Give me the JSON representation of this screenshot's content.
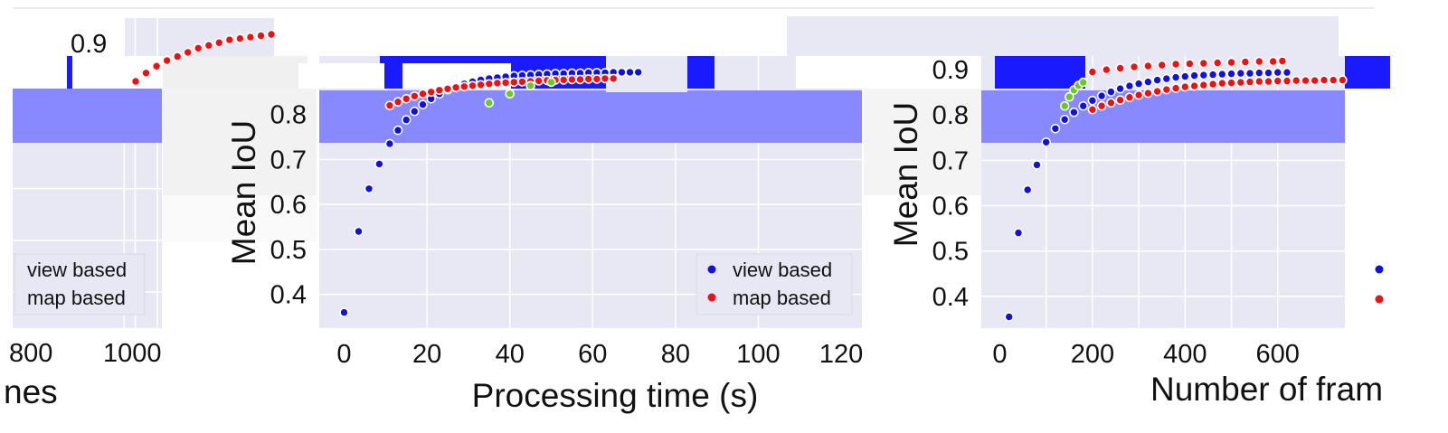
{
  "colors": {
    "plot_bg": "#e8e8f4",
    "band": "#8888ff",
    "band_dark": "#1a1aff",
    "grid": "#ffffff",
    "view_based": "#1010e0",
    "map_based": "#ee1111",
    "highlight": "#66cc22"
  },
  "chart_data": [
    {
      "id": "left",
      "type": "scatter",
      "xlabel": "Number of frames",
      "ylabel": "Mean IoU",
      "visible_x_ticks": [
        "800",
        "1000"
      ],
      "visible_y_ticks": [
        "0.9"
      ],
      "xlabel_visible_part": "nes",
      "xlim": [
        0,
        1040
      ],
      "ylim": [
        0.33,
        0.93
      ],
      "grid": true,
      "legend": {
        "placement": "bottom-right",
        "entries": [
          "view based",
          "map based"
        ]
      },
      "series": [
        {
          "name": "map based",
          "x": [
            480,
            520,
            560,
            600,
            640,
            680,
            720,
            760,
            800,
            840,
            880,
            920,
            960,
            1000
          ],
          "y": [
            0.872,
            0.878,
            0.883,
            0.887,
            0.89,
            0.893,
            0.896,
            0.898,
            0.9,
            0.902,
            0.903,
            0.904,
            0.905,
            0.906
          ]
        }
      ]
    },
    {
      "id": "middle",
      "type": "scatter",
      "xlabel": "Processing time (s)",
      "ylabel": "Mean IoU",
      "x_ticks": [
        "0",
        "20",
        "40",
        "60",
        "80",
        "100",
        "120"
      ],
      "y_ticks": [
        "0.4",
        "0.5",
        "0.6",
        "0.7",
        "0.8"
      ],
      "xlim": [
        -6,
        125
      ],
      "ylim": [
        0.325,
        0.93
      ],
      "grid": true,
      "legend": {
        "placement": "bottom-right",
        "entries": [
          "view based",
          "map based"
        ]
      },
      "series": [
        {
          "name": "view based",
          "x": [
            0,
            3.5,
            6,
            8.5,
            11,
            13,
            15,
            17,
            19,
            21,
            23,
            25,
            27,
            29,
            31,
            33,
            35,
            37,
            39,
            41,
            43,
            45,
            47,
            49,
            51,
            53,
            55,
            57,
            59,
            61,
            63,
            65,
            67,
            69,
            71
          ],
          "y": [
            0.36,
            0.54,
            0.635,
            0.69,
            0.735,
            0.765,
            0.788,
            0.807,
            0.822,
            0.835,
            0.846,
            0.855,
            0.862,
            0.868,
            0.873,
            0.877,
            0.88,
            0.882,
            0.884,
            0.886,
            0.887,
            0.888,
            0.889,
            0.89,
            0.891,
            0.891,
            0.892,
            0.892,
            0.893,
            0.893,
            0.893,
            0.894,
            0.894,
            0.894,
            0.894
          ]
        },
        {
          "name": "map based",
          "x": [
            11,
            13,
            15,
            17,
            19,
            21,
            23,
            25,
            27,
            29,
            31,
            33,
            35,
            37,
            39,
            41,
            43,
            45,
            47,
            49,
            51,
            53,
            55,
            57,
            59,
            61,
            63,
            65
          ],
          "y": [
            0.82,
            0.828,
            0.835,
            0.841,
            0.846,
            0.85,
            0.854,
            0.857,
            0.86,
            0.862,
            0.864,
            0.866,
            0.868,
            0.87,
            0.871,
            0.872,
            0.873,
            0.874,
            0.875,
            0.876,
            0.877,
            0.877,
            0.878,
            0.878,
            0.879,
            0.879,
            0.88,
            0.88
          ]
        },
        {
          "name": "highlight",
          "x": [
            35,
            40,
            45,
            50
          ],
          "y": [
            0.826,
            0.846,
            0.864,
            0.872
          ]
        }
      ]
    },
    {
      "id": "right",
      "type": "scatter",
      "xlabel": "Number of fram",
      "ylabel": "Mean IoU",
      "x_ticks": [
        "0",
        "200",
        "400",
        "600"
      ],
      "y_ticks": [
        "0.4",
        "0.5",
        "0.6",
        "0.7",
        "0.8",
        "0.9"
      ],
      "xlim": [
        -40,
        745
      ],
      "ylim": [
        0.33,
        0.93
      ],
      "grid": true,
      "legend": {
        "placement": "bottom-right",
        "entries": [
          "view based",
          "map based"
        ]
      },
      "series": [
        {
          "name": "view based",
          "x": [
            20,
            40,
            60,
            80,
            100,
            120,
            140,
            160,
            180,
            200,
            220,
            240,
            260,
            280,
            300,
            320,
            340,
            360,
            380,
            400,
            420,
            440,
            460,
            480,
            500,
            520,
            540,
            560,
            580,
            600,
            620
          ],
          "y": [
            0.355,
            0.54,
            0.635,
            0.69,
            0.74,
            0.77,
            0.79,
            0.806,
            0.82,
            0.832,
            0.842,
            0.851,
            0.858,
            0.864,
            0.869,
            0.873,
            0.877,
            0.88,
            0.883,
            0.885,
            0.887,
            0.888,
            0.889,
            0.89,
            0.891,
            0.892,
            0.892,
            0.893,
            0.893,
            0.894,
            0.894
          ]
        },
        {
          "name": "map based",
          "x": [
            200,
            220,
            240,
            260,
            280,
            300,
            320,
            340,
            360,
            380,
            400,
            420,
            440,
            460,
            480,
            500,
            520,
            540,
            560,
            580,
            600,
            620,
            640,
            660,
            680,
            700,
            720,
            740
          ],
          "y": [
            0.812,
            0.82,
            0.827,
            0.833,
            0.839,
            0.844,
            0.848,
            0.852,
            0.856,
            0.859,
            0.862,
            0.864,
            0.866,
            0.868,
            0.87,
            0.871,
            0.872,
            0.873,
            0.874,
            0.874,
            0.875,
            0.875,
            0.876,
            0.876,
            0.876,
            0.877,
            0.877,
            0.877
          ]
        },
        {
          "name": "map based (upper)",
          "x": [
            200,
            230,
            260,
            290,
            320,
            350,
            380,
            410,
            440,
            470,
            500,
            530,
            560,
            590,
            610
          ],
          "y": [
            0.895,
            0.9,
            0.903,
            0.906,
            0.908,
            0.91,
            0.912,
            0.913,
            0.914,
            0.915,
            0.916,
            0.917,
            0.918,
            0.918,
            0.919
          ]
        },
        {
          "name": "highlight",
          "x": [
            140,
            150,
            160,
            170,
            180
          ],
          "y": [
            0.82,
            0.84,
            0.855,
            0.865,
            0.872
          ]
        }
      ]
    }
  ]
}
